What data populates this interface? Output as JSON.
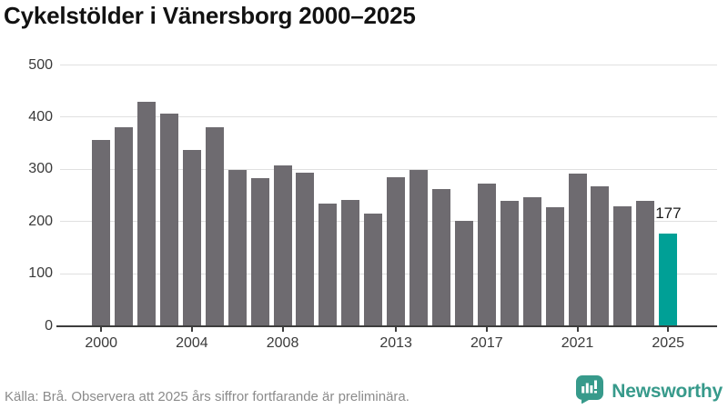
{
  "title": "Cykelstölder i Vänersborg 2000–2025",
  "chart_data": {
    "type": "bar",
    "title": "Cykelstölder i Vänersborg 2000–2025",
    "x": [
      2000,
      2001,
      2002,
      2003,
      2004,
      2005,
      2006,
      2007,
      2008,
      2009,
      2010,
      2011,
      2012,
      2013,
      2014,
      2015,
      2016,
      2017,
      2018,
      2019,
      2020,
      2021,
      2022,
      2023,
      2024,
      2025
    ],
    "values": [
      357,
      381,
      430,
      406,
      337,
      381,
      299,
      283,
      308,
      293,
      235,
      242,
      215,
      284,
      299,
      262,
      201,
      272,
      240,
      246,
      228,
      291,
      267,
      229,
      239,
      177
    ],
    "highlight_index": 25,
    "annotation": {
      "text": "177",
      "year": 2025
    },
    "xlabel": "",
    "ylabel": "",
    "ylim": [
      0,
      500
    ],
    "yticks": [
      0,
      100,
      200,
      300,
      400,
      500
    ],
    "xticks": [
      2000,
      2004,
      2008,
      2013,
      2017,
      2021,
      2025
    ],
    "grid": "horizontal",
    "legend": "none",
    "colors": {
      "bar": "#6e6b70",
      "highlight": "#00a096",
      "grid": "#e0e0e0",
      "axis": "#3d3d3d",
      "tick_label": "#3a3a3a",
      "annotation": "#1b1b1b"
    }
  },
  "footer": {
    "source_text": "Källa: Brå. Observera att 2025 års siffror fortfarande är preliminära.",
    "brand": {
      "name": "Newsworthy",
      "color": "#379a8b",
      "icon": "newsworthy-bar-chart-bubble-icon"
    }
  }
}
